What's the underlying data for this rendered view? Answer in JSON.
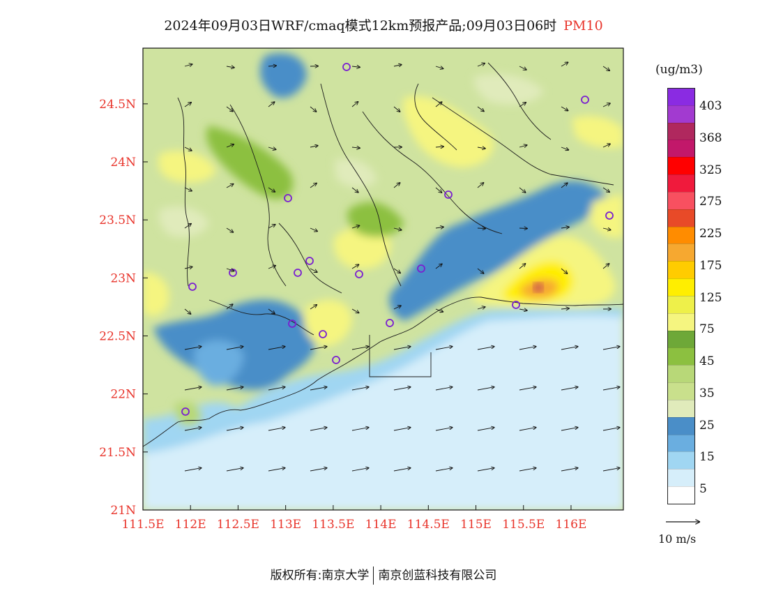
{
  "header": {
    "title": "2024年09月03日WRF/cmaq模式12km预报产品;09月03日06时",
    "variable": "PM10"
  },
  "map": {
    "x_ticks": [
      "111.5E",
      "112E",
      "112.5E",
      "113E",
      "113.5E",
      "114E",
      "114.5E",
      "115E",
      "115.5E",
      "116E"
    ],
    "y_ticks": [
      "24.5N",
      "24N",
      "23.5N",
      "23N",
      "22.5N",
      "22N",
      "21.5N",
      "21N"
    ],
    "x_range": [
      111.5,
      116.55
    ],
    "y_range": [
      21.0,
      24.98
    ],
    "background_color": "#cfe3a0"
  },
  "legend": {
    "unit": "(ug/m3)",
    "labels": [
      "403",
      "368",
      "325",
      "275",
      "225",
      "175",
      "125",
      "75",
      "45",
      "35",
      "25",
      "15",
      "5"
    ],
    "colors": [
      "#8a2be2",
      "#a23ad0",
      "#b0285e",
      "#c2186a",
      "#ff0000",
      "#f01a3c",
      "#f85060",
      "#e84a28",
      "#ff8c00",
      "#f6a830",
      "#ffcc00",
      "#ffee00",
      "#eef04a",
      "#f5f580",
      "#6ea838",
      "#8cc040",
      "#b8d878",
      "#c9e08c",
      "#e0ebbb",
      "#4a8ec8",
      "#6aaee0",
      "#a0d6f2",
      "#d6eefa",
      "#ffffff"
    ]
  },
  "wind_reference": {
    "label": "10 m/s"
  },
  "footer": {
    "left": "版权所有:南京大学",
    "right": "南京创蓝科技有限公司"
  }
}
